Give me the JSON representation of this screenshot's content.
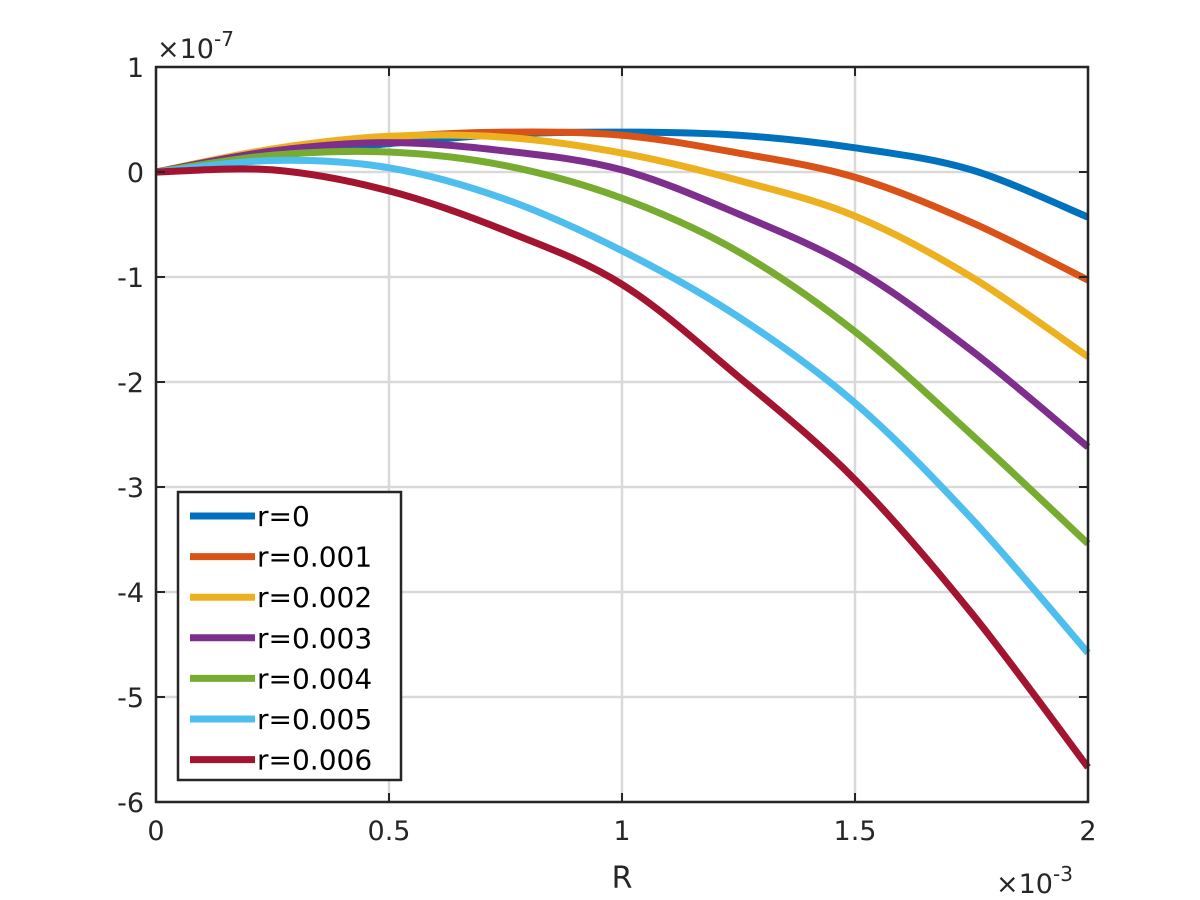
{
  "chart_data": {
    "type": "line",
    "xlabel": "R",
    "ylabel": "",
    "xlim": [
      0,
      0.002
    ],
    "ylim": [
      -6e-07,
      1e-07
    ],
    "x_ticks": [
      0,
      0.0005,
      0.001,
      0.0015,
      0.002
    ],
    "x_tick_labels": [
      "0",
      "0.5",
      "1",
      "1.5",
      "2"
    ],
    "y_ticks": [
      1e-07,
      0,
      -1e-07,
      -2e-07,
      -3e-07,
      -4e-07,
      -5e-07,
      -6e-07
    ],
    "y_tick_labels": [
      "1",
      "0",
      "-1",
      "-2",
      "-3",
      "-4",
      "-5",
      "-6"
    ],
    "x_exponent": {
      "prefix": "×10",
      "power": "-3"
    },
    "y_exponent": {
      "prefix": "×10",
      "power": "-7"
    },
    "grid": true,
    "legend_position": "bottom-left",
    "x": [
      0,
      0.00025,
      0.0005,
      0.00075,
      0.001,
      0.00125,
      0.0015,
      0.00175,
      0.002
    ],
    "series": [
      {
        "name": "r=0",
        "color": "#0072BD",
        "values": [
          0,
          1.5e-08,
          2.7e-08,
          3.6e-08,
          3.8e-08,
          3.5e-08,
          2.3e-08,
          2e-09,
          -4.3e-08
        ]
      },
      {
        "name": "r=0.001",
        "color": "#D95319",
        "values": [
          0,
          2e-08,
          3.3e-08,
          3.8e-08,
          3.5e-08,
          1.8e-08,
          -5e-09,
          -4.8e-08,
          -1.03e-07
        ]
      },
      {
        "name": "r=0.002",
        "color": "#EDB120",
        "values": [
          0,
          2.2e-08,
          3.4e-08,
          3.3e-08,
          1.8e-08,
          -8e-09,
          -4.2e-08,
          -1e-07,
          -1.76e-07
        ]
      },
      {
        "name": "r=0.003",
        "color": "#7E2F8E",
        "values": [
          0,
          2e-08,
          2.8e-08,
          2e-08,
          2e-09,
          -4e-08,
          -9.2e-08,
          -1.7e-07,
          -2.62e-07
        ]
      },
      {
        "name": "r=0.004",
        "color": "#77AC30",
        "values": [
          0,
          1.6e-08,
          1.9e-08,
          6e-09,
          -2.5e-08,
          -7.6e-08,
          -1.52e-07,
          -2.5e-07,
          -3.54e-07
        ]
      },
      {
        "name": "r=0.005",
        "color": "#4DBEEE",
        "values": [
          0,
          1.1e-08,
          4e-09,
          -2.6e-08,
          -7.5e-08,
          -1.38e-07,
          -2.2e-07,
          -3.3e-07,
          -4.58e-07
        ]
      },
      {
        "name": "r=0.006",
        "color": "#A2142F",
        "values": [
          0,
          2e-09,
          -1.8e-08,
          -5.6e-08,
          -1.07e-07,
          -1.95e-07,
          -2.93e-07,
          -4.2e-07,
          -5.67e-07
        ]
      }
    ]
  }
}
